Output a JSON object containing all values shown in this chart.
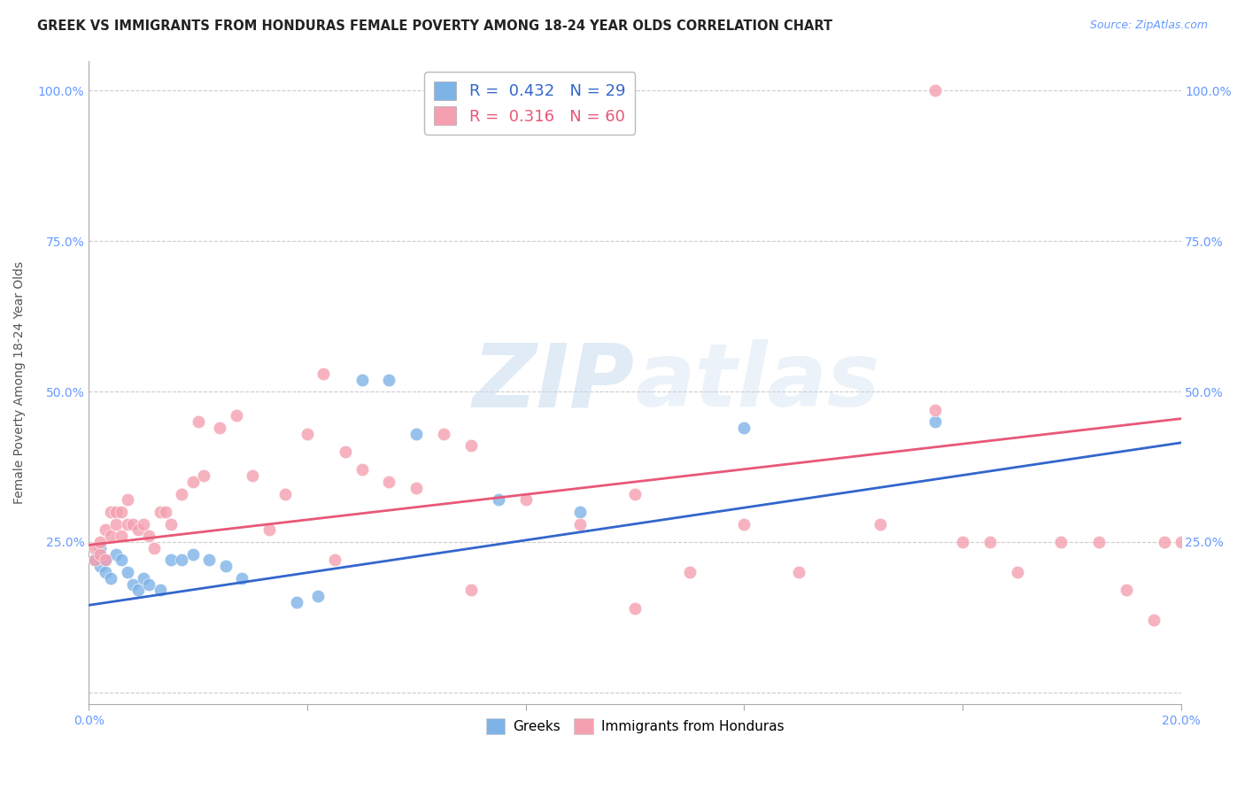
{
  "title": "GREEK VS IMMIGRANTS FROM HONDURAS FEMALE POVERTY AMONG 18-24 YEAR OLDS CORRELATION CHART",
  "source": "Source: ZipAtlas.com",
  "ylabel": "Female Poverty Among 18-24 Year Olds",
  "xlim": [
    0.0,
    0.2
  ],
  "ylim": [
    -0.02,
    1.05
  ],
  "yticks": [
    0.0,
    0.25,
    0.5,
    0.75,
    1.0
  ],
  "ytick_labels": [
    "",
    "25.0%",
    "50.0%",
    "75.0%",
    "100.0%"
  ],
  "xticks": [
    0.0,
    0.04,
    0.08,
    0.12,
    0.16,
    0.2
  ],
  "xtick_labels": [
    "0.0%",
    "",
    "",
    "",
    "",
    "20.0%"
  ],
  "legend_label1": "Greeks",
  "legend_label2": "Immigrants from Honduras",
  "color_blue": "#7EB3E8",
  "color_pink": "#F4A0B0",
  "color_blue_line": "#3366CC",
  "color_pink_line": "#E85878",
  "color_axis_labels": "#6699FF",
  "watermark_color": "#C8DCEE",
  "grid_color": "#CCCCCC",
  "background_color": "#FFFFFF",
  "title_fontsize": 10.5,
  "source_fontsize": 9,
  "axis_label_fontsize": 10,
  "tick_fontsize": 10,
  "greeks_x": [
    0.001,
    0.002,
    0.002,
    0.003,
    0.003,
    0.004,
    0.005,
    0.006,
    0.007,
    0.008,
    0.009,
    0.01,
    0.011,
    0.013,
    0.015,
    0.017,
    0.019,
    0.022,
    0.025,
    0.028,
    0.038,
    0.042,
    0.05,
    0.055,
    0.06,
    0.075,
    0.09,
    0.12,
    0.155
  ],
  "greeks_y": [
    0.22,
    0.24,
    0.21,
    0.22,
    0.2,
    0.19,
    0.23,
    0.22,
    0.2,
    0.18,
    0.17,
    0.19,
    0.18,
    0.17,
    0.22,
    0.22,
    0.23,
    0.22,
    0.21,
    0.19,
    0.15,
    0.16,
    0.52,
    0.52,
    0.43,
    0.32,
    0.3,
    0.44,
    0.45
  ],
  "honduras_x": [
    0.001,
    0.001,
    0.002,
    0.002,
    0.003,
    0.003,
    0.004,
    0.004,
    0.005,
    0.005,
    0.006,
    0.006,
    0.007,
    0.007,
    0.008,
    0.009,
    0.01,
    0.011,
    0.012,
    0.013,
    0.014,
    0.015,
    0.017,
    0.019,
    0.021,
    0.024,
    0.027,
    0.03,
    0.033,
    0.036,
    0.04,
    0.043,
    0.047,
    0.05,
    0.055,
    0.06,
    0.065,
    0.07,
    0.08,
    0.09,
    0.1,
    0.11,
    0.12,
    0.13,
    0.145,
    0.155,
    0.165,
    0.17,
    0.178,
    0.185,
    0.19,
    0.195,
    0.197,
    0.2,
    0.155,
    0.02,
    0.045,
    0.07,
    0.1,
    0.16
  ],
  "honduras_y": [
    0.22,
    0.24,
    0.23,
    0.25,
    0.22,
    0.27,
    0.26,
    0.3,
    0.28,
    0.3,
    0.26,
    0.3,
    0.28,
    0.32,
    0.28,
    0.27,
    0.28,
    0.26,
    0.24,
    0.3,
    0.3,
    0.28,
    0.33,
    0.35,
    0.36,
    0.44,
    0.46,
    0.36,
    0.27,
    0.33,
    0.43,
    0.53,
    0.4,
    0.37,
    0.35,
    0.34,
    0.43,
    0.41,
    0.32,
    0.28,
    0.33,
    0.2,
    0.28,
    0.2,
    0.28,
    0.47,
    0.25,
    0.2,
    0.25,
    0.25,
    0.17,
    0.12,
    0.25,
    0.25,
    1.0,
    0.45,
    0.22,
    0.17,
    0.14,
    0.25
  ],
  "greeks_line_x": [
    0.0,
    0.2
  ],
  "greeks_line_y": [
    0.145,
    0.415
  ],
  "honduras_line_x": [
    0.0,
    0.2
  ],
  "honduras_line_y": [
    0.245,
    0.455
  ]
}
